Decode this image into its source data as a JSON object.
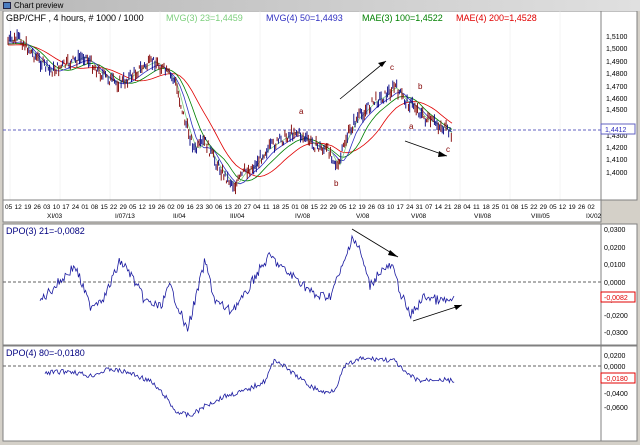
{
  "window": {
    "title": "Chart preview",
    "icon": "chart-window-icon"
  },
  "main_panel": {
    "header": {
      "symbol": "GBP/CHF , 4 hours, # 1000 / 1000",
      "ind1": "MVG(3) 23=1,4459",
      "ind2": "MVG(4) 50=1,4493",
      "ind3": "MAE(3) 100=1,4522",
      "ind4": "MAE(4) 200=1,4528"
    },
    "colors": {
      "ind1": "#7ccf7c",
      "ind2": "#3030c0",
      "ind3": "#008000",
      "ind4": "#e00000",
      "price": "#000080",
      "wave": "#800000"
    },
    "price_axis": [
      "1,5100",
      "1,5000",
      "1,4900",
      "1,4800",
      "1,4700",
      "1,4600",
      "1,4500",
      "1,4300",
      "1,4200",
      "1,4100",
      "1,4000"
    ],
    "current_price": "1,4412",
    "date_axis": [
      "05",
      "12",
      "19",
      "26",
      "03",
      "10",
      "17",
      "24",
      "01",
      "08",
      "15",
      "22",
      "29",
      "05",
      "12",
      "19",
      "26",
      "02",
      "09",
      "16",
      "23",
      "30",
      "06",
      "13",
      "20",
      "27",
      "04",
      "11",
      "18",
      "25",
      "01",
      "08",
      "15",
      "22",
      "29",
      "05",
      "12",
      "19",
      "26",
      "03",
      "10",
      "17",
      "24",
      "31",
      "07",
      "14",
      "21",
      "28",
      "04",
      "11",
      "18",
      "25",
      "01",
      "08",
      "15",
      "22",
      "29",
      "05",
      "12",
      "19",
      "26",
      "02"
    ],
    "period_labels": [
      "XI/03",
      "I/07/13",
      "II/04",
      "III/04",
      "IV/08",
      "V/08",
      "VI/08",
      "VII/08",
      "VIII/05",
      "IX/02"
    ],
    "wave_labels": [
      "a",
      "b",
      "c",
      "b",
      "a",
      "c"
    ]
  },
  "dpo1_panel": {
    "header": "DPO(3) 21=-0,0082",
    "axis": [
      "0,0300",
      "0,0200",
      "0,0100",
      "0,0000",
      "-0,0100",
      "-0,0200",
      "-0,0300"
    ],
    "current_value": "-0,0082"
  },
  "dpo2_panel": {
    "header": "DPO(4) 80=-0,0180",
    "axis": [
      "0,0200",
      "0,0000",
      "-0,0200",
      "-0,0400",
      "-0,0600"
    ],
    "current_value": "-0,0180"
  }
}
